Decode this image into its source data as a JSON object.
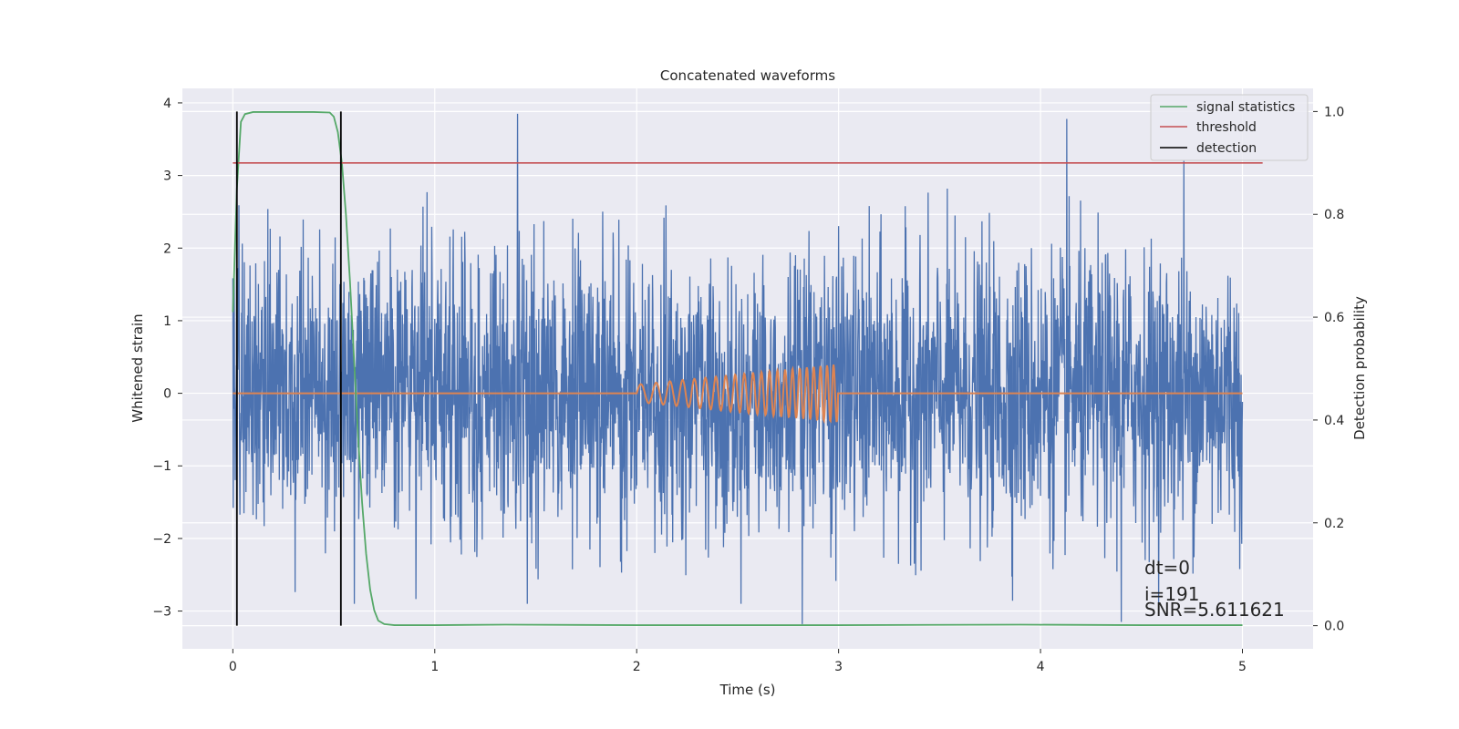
{
  "chart_data": {
    "type": "line",
    "title": "Concatenated waveforms",
    "xlabel": "Time (s)",
    "ylabel": "Whitened strain",
    "y2label": "Detection probability",
    "xlim": [
      -0.25,
      5.35
    ],
    "ylim": [
      -3.52,
      4.2
    ],
    "y2lim": [
      -0.045,
      1.045
    ],
    "x_ticks": [
      0,
      1,
      2,
      3,
      4,
      5
    ],
    "y_ticks": [
      -3,
      -2,
      -1,
      0,
      1,
      2,
      3,
      4
    ],
    "y2_ticks": [
      0.0,
      0.2,
      0.4,
      0.6,
      0.8,
      1.0
    ],
    "x_tick_labels": [
      "0",
      "1",
      "2",
      "3",
      "4",
      "5"
    ],
    "y_tick_labels": [
      "−3",
      "−2",
      "−1",
      "0",
      "1",
      "2",
      "3",
      "4"
    ],
    "y2_tick_labels": [
      "0.0",
      "0.2",
      "0.4",
      "0.6",
      "0.8",
      "1.0"
    ],
    "grid": true,
    "legend_position": "top-right",
    "colors": {
      "strain": "#4c72b0",
      "template": "#dd8452",
      "signal_statistics": "#55a868",
      "threshold": "#c44e52",
      "detection": "#000000",
      "background": "#eaeaf2",
      "grid": "#ffffff"
    },
    "series": [
      {
        "name": "signal statistics",
        "axis": "right",
        "x": [
          0.0,
          0.02,
          0.04,
          0.06,
          0.1,
          0.2,
          0.3,
          0.4,
          0.48,
          0.5,
          0.52,
          0.54,
          0.56,
          0.58,
          0.6,
          0.62,
          0.64,
          0.66,
          0.68,
          0.7,
          0.72,
          0.75,
          0.8,
          1.0,
          1.35,
          2.0,
          3.0,
          3.9,
          4.5,
          5.0
        ],
        "y": [
          0.61,
          0.85,
          0.98,
          0.995,
          0.999,
          0.999,
          0.999,
          0.999,
          0.998,
          0.99,
          0.96,
          0.9,
          0.8,
          0.67,
          0.52,
          0.37,
          0.24,
          0.14,
          0.07,
          0.03,
          0.01,
          0.003,
          0.001,
          0.001,
          0.002,
          0.001,
          0.001,
          0.002,
          0.001,
          0.001
        ]
      },
      {
        "name": "threshold",
        "axis": "right",
        "x": [
          0.0,
          5.1
        ],
        "y": [
          0.9,
          0.9
        ]
      }
    ],
    "detections": {
      "name": "detection",
      "x": [
        0.02,
        0.535
      ],
      "y2_range": [
        0.0,
        1.0
      ]
    },
    "strain": {
      "duration": 5.0,
      "noise_std": 0.95,
      "peaks": [
        {
          "x": 1.41,
          "y": 3.85
        },
        {
          "x": 2.82,
          "y": -3.18
        },
        {
          "x": 4.13,
          "y": 3.78
        },
        {
          "x": 4.4,
          "y": -3.15
        },
        {
          "x": 4.71,
          "y": 3.2
        }
      ]
    },
    "template": {
      "t_start": 2.0,
      "t_end": 2.995,
      "amp_start": 0.12,
      "amp_end": 0.4,
      "freq_start": 12,
      "freq_end": 32
    }
  },
  "annotations": {
    "dt": "dt=0",
    "i": "i=191",
    "snr": "SNR=5.611621"
  },
  "legend": {
    "signal": "signal statistics",
    "threshold": "threshold",
    "detection": "detection"
  }
}
